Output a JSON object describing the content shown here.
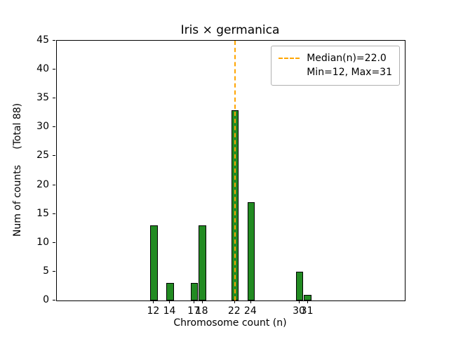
{
  "figure": {
    "title": "Iris × germanica",
    "xlabel": "Chromosome count (n)",
    "ylabel": "Num of counts     (Total 88)"
  },
  "legend": {
    "line1": "Median(n)=22.0",
    "line2": "Min=12, Max=31"
  },
  "chart_data": {
    "type": "bar",
    "title": "Iris × germanica",
    "xlabel": "Chromosome count (n)",
    "ylabel": "Num of counts     (Total 88)",
    "categories": [
      12,
      14,
      17,
      18,
      22,
      24,
      30,
      31
    ],
    "values": [
      13,
      3,
      3,
      13,
      33,
      17,
      5,
      1
    ],
    "total_counts": 88,
    "median": 22.0,
    "min": 12,
    "max": 31,
    "xlim": [
      0,
      43
    ],
    "ylim": [
      0,
      45
    ],
    "xticks": [
      12,
      14,
      17,
      18,
      22,
      24,
      30,
      31
    ],
    "yticks": [
      0,
      5,
      10,
      15,
      20,
      25,
      30,
      35,
      40,
      45
    ],
    "bar_width_units": 0.9,
    "bar_color": "#228B22",
    "bar_edge_color": "#000000",
    "median_line_color": "#FFA500",
    "legend_position": "top-right",
    "grid": false
  }
}
